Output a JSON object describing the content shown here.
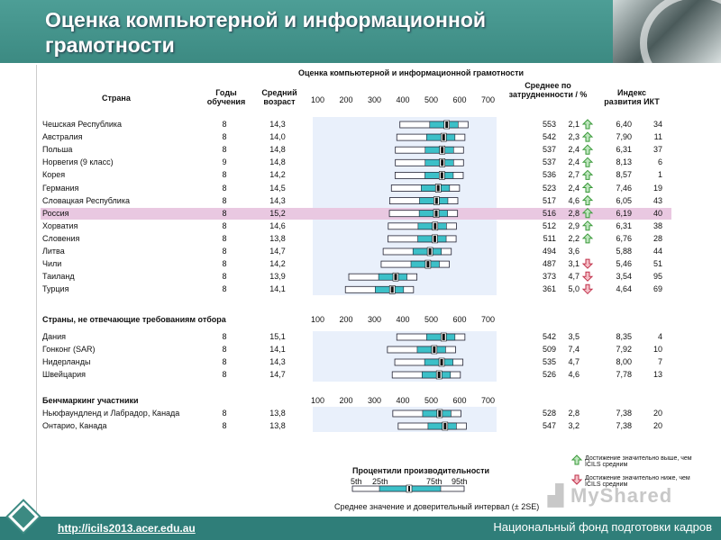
{
  "header": {
    "title": "Оценка компьютерной и информационной грамотности"
  },
  "table": {
    "title": "Оценка компьютерной и информационной грамотности",
    "col_country": "Страна",
    "col_years": "Годы обучения",
    "col_age": "Средний возраст",
    "col_mean": "Среднее по затрудненности / %",
    "col_ict": "Индекс развития ИКТ",
    "scale": [
      "100",
      "200",
      "300",
      "400",
      "500",
      "600",
      "700"
    ],
    "rows": [
      {
        "country": "Чешская Республика",
        "years": "8",
        "age": "14,3",
        "mean": "553",
        "se": "2,1",
        "sig": "up",
        "ict": "6,40",
        "rank": "34",
        "score": 553
      },
      {
        "country": "Австралия",
        "years": "8",
        "age": "14,0",
        "mean": "542",
        "se": "2,3",
        "sig": "up",
        "ict": "7,90",
        "rank": "11",
        "score": 542
      },
      {
        "country": "Польша",
        "years": "8",
        "age": "14,8",
        "mean": "537",
        "se": "2,4",
        "sig": "up",
        "ict": "6,31",
        "rank": "37",
        "score": 537
      },
      {
        "country": "Норвегия (9 класс)",
        "years": "9",
        "age": "14,8",
        "mean": "537",
        "se": "2,4",
        "sig": "up",
        "ict": "8,13",
        "rank": "6",
        "score": 537
      },
      {
        "country": "Корея",
        "years": "8",
        "age": "14,2",
        "mean": "536",
        "se": "2,7",
        "sig": "up",
        "ict": "8,57",
        "rank": "1",
        "score": 536
      },
      {
        "country": "Германия",
        "years": "8",
        "age": "14,5",
        "mean": "523",
        "se": "2,4",
        "sig": "up",
        "ict": "7,46",
        "rank": "19",
        "score": 523
      },
      {
        "country": "Словацкая Республика",
        "years": "8",
        "age": "14,3",
        "mean": "517",
        "se": "4,6",
        "sig": "up",
        "ict": "6,05",
        "rank": "43",
        "score": 517
      },
      {
        "country": "Россия",
        "years": "8",
        "age": "15,2",
        "mean": "516",
        "se": "2,8",
        "sig": "up",
        "ict": "6,19",
        "rank": "40",
        "score": 516
      },
      {
        "country": "Хорватия",
        "years": "8",
        "age": "14,6",
        "mean": "512",
        "se": "2,9",
        "sig": "up",
        "ict": "6,31",
        "rank": "38",
        "score": 512
      },
      {
        "country": "Словения",
        "years": "8",
        "age": "13,8",
        "mean": "511",
        "se": "2,2",
        "sig": "up",
        "ict": "6,76",
        "rank": "28",
        "score": 511
      },
      {
        "country": "Литва",
        "years": "8",
        "age": "14,7",
        "mean": "494",
        "se": "3,6",
        "sig": "",
        "ict": "5,88",
        "rank": "44",
        "score": 494
      },
      {
        "country": "Чили",
        "years": "8",
        "age": "14,2",
        "mean": "487",
        "se": "3,1",
        "sig": "down",
        "ict": "5,46",
        "rank": "51",
        "score": 487
      },
      {
        "country": "Таиланд",
        "years": "8",
        "age": "13,9",
        "mean": "373",
        "se": "4,7",
        "sig": "down",
        "ict": "3,54",
        "rank": "95",
        "score": 373
      },
      {
        "country": "Турция",
        "years": "8",
        "age": "14,1",
        "mean": "361",
        "se": "5,0",
        "sig": "down",
        "ict": "4,64",
        "rank": "69",
        "score": 361
      }
    ],
    "group2_title": "Страны, не отвечающие требованиям отбора",
    "group2": [
      {
        "country": "Дания",
        "years": "8",
        "age": "15,1",
        "mean": "542",
        "se": "3,5",
        "ict": "8,35",
        "rank": "4",
        "score": 542
      },
      {
        "country": "Гонконг (SAR)",
        "years": "8",
        "age": "14,1",
        "mean": "509",
        "se": "7,4",
        "ict": "7,92",
        "rank": "10",
        "score": 509
      },
      {
        "country": "Нидерланды",
        "years": "8",
        "age": "14,3",
        "mean": "535",
        "se": "4,7",
        "ict": "8,00",
        "rank": "7",
        "score": 535
      },
      {
        "country": "Швейцария",
        "years": "8",
        "age": "14,7",
        "mean": "526",
        "se": "4,6",
        "ict": "7,78",
        "rank": "13",
        "score": 526
      }
    ],
    "group3_title": "Бенчмаркинг участники",
    "group3": [
      {
        "country": "Ньюфаундленд и Лабрадор, Канада",
        "years": "8",
        "age": "13,8",
        "mean": "528",
        "se": "2,8",
        "ict": "7,38",
        "rank": "20",
        "score": 528
      },
      {
        "country": "Онтарио, Канада",
        "years": "8",
        "age": "13,8",
        "mean": "547",
        "se": "3,2",
        "ict": "7,38",
        "rank": "20",
        "score": 547
      }
    ],
    "legend": {
      "percentiles": "Процентили производительности",
      "p5": "5th",
      "p25": "25th",
      "p75": "75th",
      "p95": "95th",
      "ci": "Среднее значение и доверительный интервал (± 2SE)",
      "above": "Достижение значительно выше, чем ICILS средним",
      "below": "Достижение значительно ниже, чем ICILS средним"
    }
  },
  "footer": {
    "link": "http://icils2013.acer.edu.au",
    "org": "Национальный фонд подготовки кадров"
  },
  "colors": {
    "header": "#3c8a82",
    "cyan": "#3cc0c8",
    "up": "#3a9a3a",
    "down": "#c0304a"
  }
}
